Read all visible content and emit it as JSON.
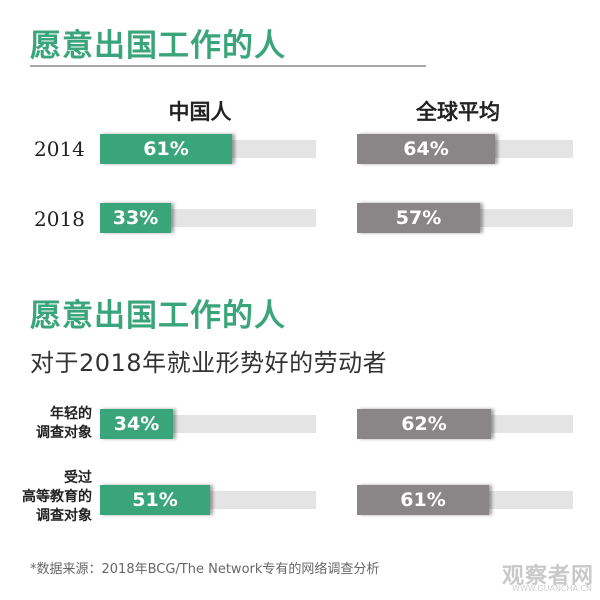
{
  "chart_data": [
    {
      "type": "bar",
      "title": "愿意出国工作的人",
      "categories": [
        "2014",
        "2018"
      ],
      "series": [
        {
          "name": "中国人",
          "values": [
            61,
            33
          ],
          "labels": [
            "61%",
            "33%"
          ]
        },
        {
          "name": "全球平均",
          "values": [
            64,
            57
          ],
          "labels": [
            "64%",
            "57%"
          ]
        }
      ],
      "ylim": [
        0,
        100
      ],
      "grid": false
    },
    {
      "type": "bar",
      "title": "愿意出国工作的人",
      "subtitle": "对于2018年就业形势好的劳动者",
      "categories": [
        "年轻的\n调查对象",
        "受过\n高等教育的\n调查对象"
      ],
      "series": [
        {
          "values": [
            34,
            51
          ],
          "labels": [
            "34%",
            "51%"
          ]
        },
        {
          "values": [
            62,
            61
          ],
          "labels": [
            "62%",
            "61%"
          ]
        }
      ],
      "ylim": [
        0,
        100
      ],
      "grid": false
    }
  ],
  "colors": {
    "china": "#3aa57a",
    "global": "#8a8688",
    "track": "#e4e4e4",
    "title": "#3aa57a"
  },
  "footnote": "*数据来源：2018年BCG/The Network专有的网络调查分析",
  "watermark": {
    "main": "观察者网",
    "sub": "WWW.GUANCHA.CN"
  }
}
